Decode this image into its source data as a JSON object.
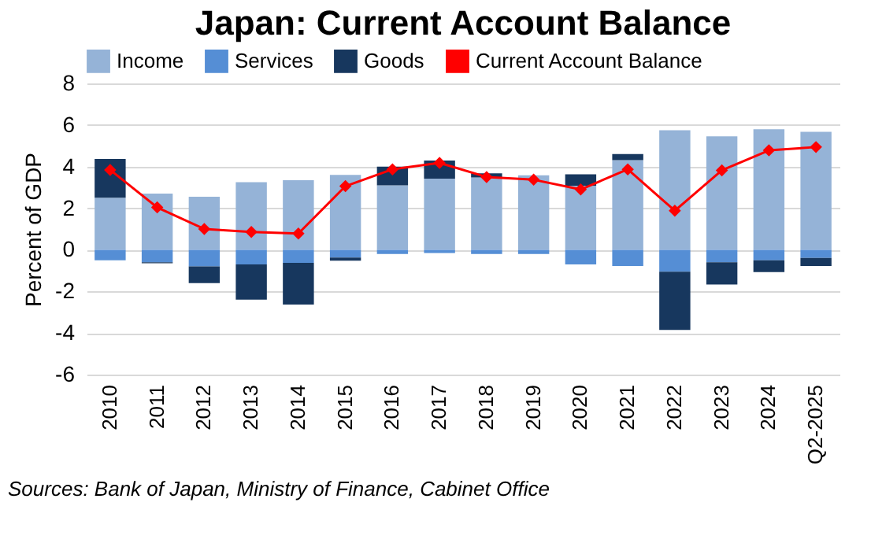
{
  "chart_data": {
    "type": "bar",
    "title": "Japan: Current Account Balance",
    "ylabel": "Percent of GDP",
    "stacked": true,
    "legend": "top",
    "grid": "y",
    "categories": [
      "2010",
      "2011",
      "2012",
      "2013",
      "2014",
      "2015",
      "2016",
      "2017",
      "2018",
      "2019",
      "2020",
      "2021",
      "2022",
      "2023",
      "2024",
      "Q2-2025"
    ],
    "ylim": [
      -6,
      8
    ],
    "yticks": [
      -6,
      -4,
      -2,
      0,
      2,
      4,
      6,
      8
    ],
    "series": [
      {
        "name": "Income",
        "color": "#95b3d7",
        "values": [
          2.5,
          2.7,
          2.55,
          3.25,
          3.35,
          3.6,
          3.1,
          3.42,
          3.48,
          3.58,
          3.08,
          4.31,
          5.75,
          5.46,
          5.8,
          5.67
        ]
      },
      {
        "name": "Services",
        "color": "#558ed5",
        "values": [
          -0.5,
          -0.6,
          -0.8,
          -0.7,
          -0.63,
          -0.37,
          -0.2,
          -0.15,
          -0.2,
          -0.2,
          -0.7,
          -0.78,
          -1.05,
          -0.6,
          -0.5,
          -0.39
        ]
      },
      {
        "name": "Goods",
        "color": "#17375e",
        "values": [
          1.87,
          -0.05,
          -0.8,
          -1.7,
          -2.0,
          -0.15,
          0.9,
          0.87,
          0.2,
          0.0,
          0.55,
          0.29,
          -2.8,
          -1.07,
          -0.57,
          -0.39
        ]
      },
      {
        "name": "Current Account Balance",
        "type": "line",
        "color": "#ff0000",
        "marker": "diamond",
        "values": [
          3.84,
          2.04,
          1.0,
          0.86,
          0.78,
          3.06,
          3.87,
          4.18,
          3.5,
          3.37,
          2.9,
          3.87,
          1.88,
          3.82,
          4.78,
          4.94
        ]
      }
    ],
    "annotations": [
      "Sources: Bank of Japan, Ministry of Finance, Cabinet Office"
    ]
  }
}
